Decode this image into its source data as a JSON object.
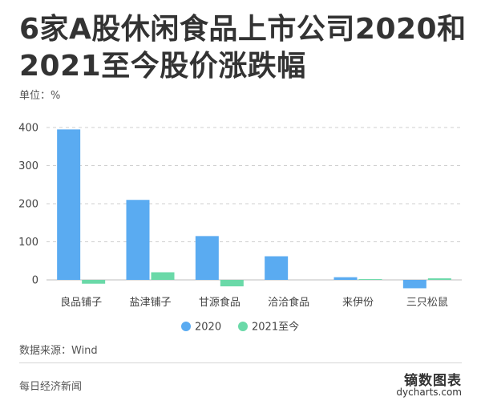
{
  "title": "6家A股休闲食品上市公司2020和2021至今股价涨跌幅",
  "unit_label": "单位：%",
  "source": "数据来源：Wind",
  "publisher": "每日经济新闻",
  "brand": {
    "name": "镝数图表",
    "url": "dycharts.com"
  },
  "chart_data": {
    "type": "bar",
    "categories": [
      "良品铺子",
      "盐津铺子",
      "甘源食品",
      "洽洽食品",
      "来伊份",
      "三只松鼠"
    ],
    "series": [
      {
        "name": "2020",
        "color": "#5aabf1",
        "values": [
          395,
          210,
          115,
          62,
          7,
          -22
        ]
      },
      {
        "name": "2021至今",
        "color": "#6ad9a8",
        "values": [
          -10,
          20,
          -17,
          0,
          2,
          4
        ]
      }
    ],
    "ylim": [
      0,
      400
    ],
    "yticks": [
      0,
      100,
      200,
      300,
      400
    ],
    "grid": true,
    "legend": "bottom"
  }
}
